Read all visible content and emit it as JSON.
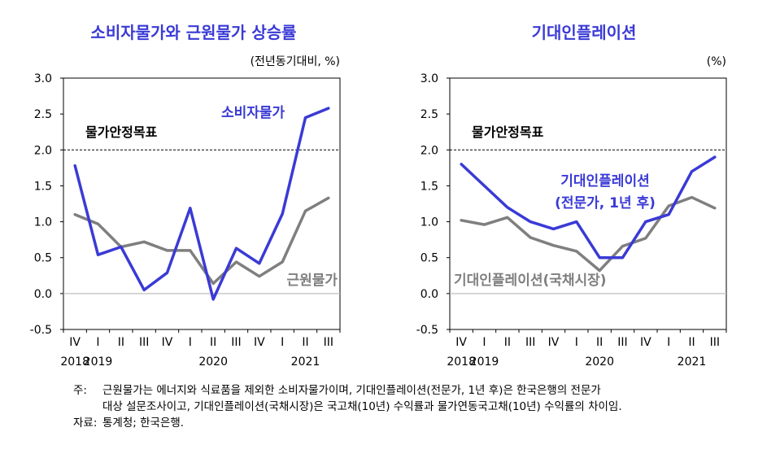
{
  "chart_data": [
    {
      "type": "line",
      "title": "소비자물가와 근원물가 상승률",
      "unit_label": "(전년동기대비, %)",
      "target_label": "물가안정목표",
      "target_value": 2.0,
      "ylim": [
        -0.5,
        3.0
      ],
      "yticks": [
        "3.0",
        "2.5",
        "2.0",
        "1.5",
        "1.0",
        "0.5",
        "0.0",
        "-0.5"
      ],
      "x": [
        "IV",
        "I",
        "II",
        "III",
        "IV",
        "I",
        "II",
        "III",
        "IV",
        "I",
        "II",
        "III"
      ],
      "years": [
        "2018",
        "2019",
        "2020",
        "2021"
      ],
      "series": [
        {
          "name": "소비자물가",
          "color": "#3a3ad6",
          "values": [
            1.78,
            0.54,
            0.65,
            0.05,
            0.29,
            1.19,
            -0.08,
            0.63,
            0.42,
            1.11,
            2.45,
            2.58
          ]
        },
        {
          "name": "근원물가",
          "color": "#7f7f7f",
          "values": [
            1.1,
            0.97,
            0.65,
            0.72,
            0.6,
            0.6,
            0.14,
            0.44,
            0.24,
            0.44,
            1.15,
            1.33
          ]
        }
      ]
    },
    {
      "type": "line",
      "title": "기대인플레이션",
      "unit_label": "(%)",
      "target_label": "물가안정목표",
      "target_value": 2.0,
      "ylim": [
        -0.5,
        3.0
      ],
      "yticks": [
        "3.0",
        "2.5",
        "2.0",
        "1.5",
        "1.0",
        "0.5",
        "0.0",
        "-0.5"
      ],
      "x": [
        "IV",
        "I",
        "II",
        "III",
        "IV",
        "I",
        "II",
        "III",
        "IV",
        "I",
        "II",
        "III"
      ],
      "years": [
        "2018",
        "2019",
        "2020",
        "2021"
      ],
      "series": [
        {
          "name": "기대인플레이션 (전문가, 1년 후)",
          "label_lines": [
            "기대인플레이션",
            "(전문가, 1년 후)"
          ],
          "color": "#3a3ad6",
          "values": [
            1.8,
            1.5,
            1.2,
            1.0,
            0.9,
            1.0,
            0.5,
            0.5,
            1.0,
            1.1,
            1.7,
            1.9
          ]
        },
        {
          "name": "기대인플레이션(국채시장)",
          "color": "#7f7f7f",
          "values": [
            1.02,
            0.96,
            1.06,
            0.78,
            0.67,
            0.59,
            0.32,
            0.66,
            0.77,
            1.22,
            1.34,
            1.19
          ]
        }
      ]
    }
  ],
  "notes": {
    "note_head": "주:",
    "note_line1": "근원물가는 에너지와 식료품을 제외한 소비자물가이며, 기대인플레이션(전문가, 1년 후)은 한국은행의 전문가",
    "note_line2": "대상 설문조사이고, 기대인플레이션(국채시장)은 국고채(10년) 수익률과 물가연동국고채(10년) 수익률의 차이임.",
    "source_head": "자료:",
    "source_text": "통계청; 한국은행."
  }
}
